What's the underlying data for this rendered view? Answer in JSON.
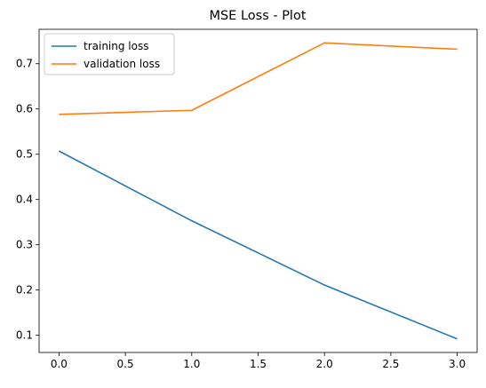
{
  "chart_data": {
    "type": "line",
    "title": "MSE Loss - Plot",
    "xlabel": "",
    "ylabel": "",
    "x": [
      0,
      1,
      2,
      3
    ],
    "xlim": [
      -0.15,
      3.15
    ],
    "ylim": [
      0.062,
      0.776
    ],
    "xticks": [
      0.0,
      0.5,
      1.0,
      1.5,
      2.0,
      2.5,
      3.0
    ],
    "xtick_labels": [
      "0.0",
      "0.5",
      "1.0",
      "1.5",
      "2.0",
      "2.5",
      "3.0"
    ],
    "yticks": [
      0.1,
      0.2,
      0.3,
      0.4,
      0.5,
      0.6,
      0.7
    ],
    "ytick_labels": [
      "0.1",
      "0.2",
      "0.3",
      "0.4",
      "0.5",
      "0.6",
      "0.7"
    ],
    "grid": false,
    "legend_position": "top-left",
    "series": [
      {
        "name": "training loss",
        "color": "#1f77b4",
        "values": [
          0.507,
          0.353,
          0.211,
          0.092
        ]
      },
      {
        "name": "validation loss",
        "color": "#ff7f0e",
        "values": [
          0.588,
          0.597,
          0.746,
          0.732
        ]
      }
    ]
  }
}
